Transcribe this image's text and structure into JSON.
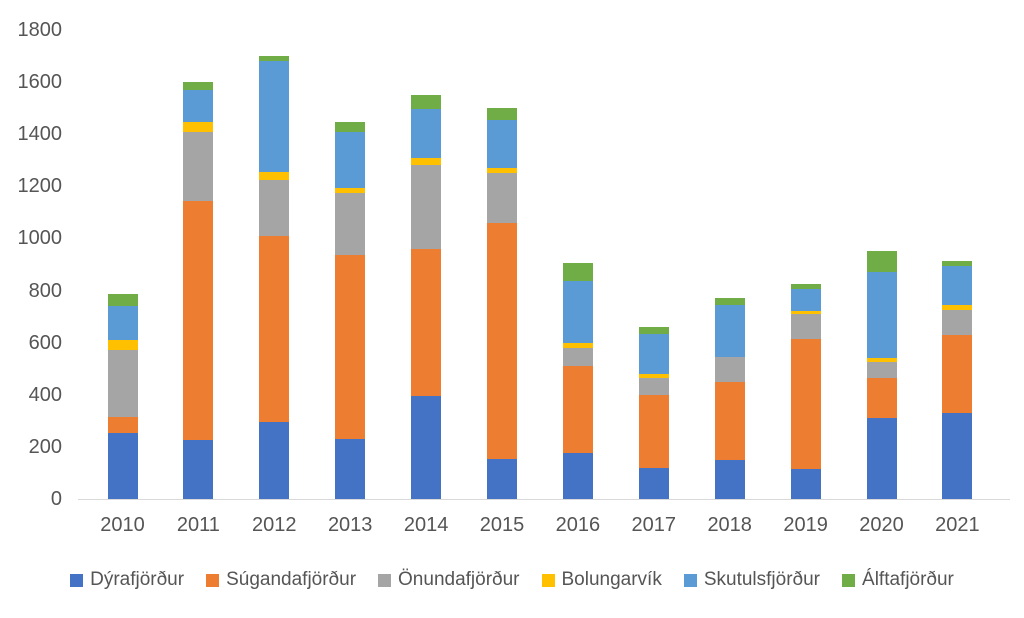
{
  "chart_data": {
    "type": "bar",
    "stacked": true,
    "title": "",
    "xlabel": "",
    "ylabel": "",
    "categories": [
      "2010",
      "2011",
      "2012",
      "2013",
      "2014",
      "2015",
      "2016",
      "2017",
      "2018",
      "2019",
      "2020",
      "2021"
    ],
    "series": [
      {
        "name": "Dýrafjörður",
        "color": "#4472C4",
        "values": [
          255,
          225,
          295,
          230,
          395,
          155,
          175,
          120,
          150,
          115,
          310,
          330
        ]
      },
      {
        "name": "Súgandafjörður",
        "color": "#ED7D31",
        "values": [
          60,
          920,
          715,
          705,
          565,
          905,
          335,
          280,
          300,
          500,
          155,
          300
        ]
      },
      {
        "name": "Önundafjörður",
        "color": "#A5A5A5",
        "values": [
          255,
          265,
          215,
          240,
          320,
          190,
          70,
          65,
          95,
          95,
          60,
          95
        ]
      },
      {
        "name": "Bolungarvík",
        "color": "#FFC000",
        "values": [
          40,
          35,
          30,
          20,
          30,
          20,
          20,
          15,
          0,
          10,
          15,
          20
        ]
      },
      {
        "name": "Skutulsfjörður",
        "color": "#5B9BD5",
        "values": [
          130,
          125,
          425,
          215,
          185,
          185,
          235,
          155,
          200,
          85,
          330,
          150
        ]
      },
      {
        "name": "Álftafjörður",
        "color": "#70AD47",
        "values": [
          45,
          30,
          20,
          35,
          55,
          45,
          70,
          25,
          25,
          20,
          80,
          20
        ]
      }
    ],
    "totals": [
      785,
      1600,
      1700,
      1445,
      1550,
      1500,
      905,
      660,
      770,
      825,
      950,
      915
    ],
    "ylim": [
      0,
      1800
    ],
    "yticks": [
      0,
      200,
      400,
      600,
      800,
      1000,
      1200,
      1400,
      1600,
      1800
    ],
    "grid": false,
    "legend_position": "bottom",
    "axis_text_color": "#555555",
    "axis_line_color": "#d9d9d9"
  }
}
